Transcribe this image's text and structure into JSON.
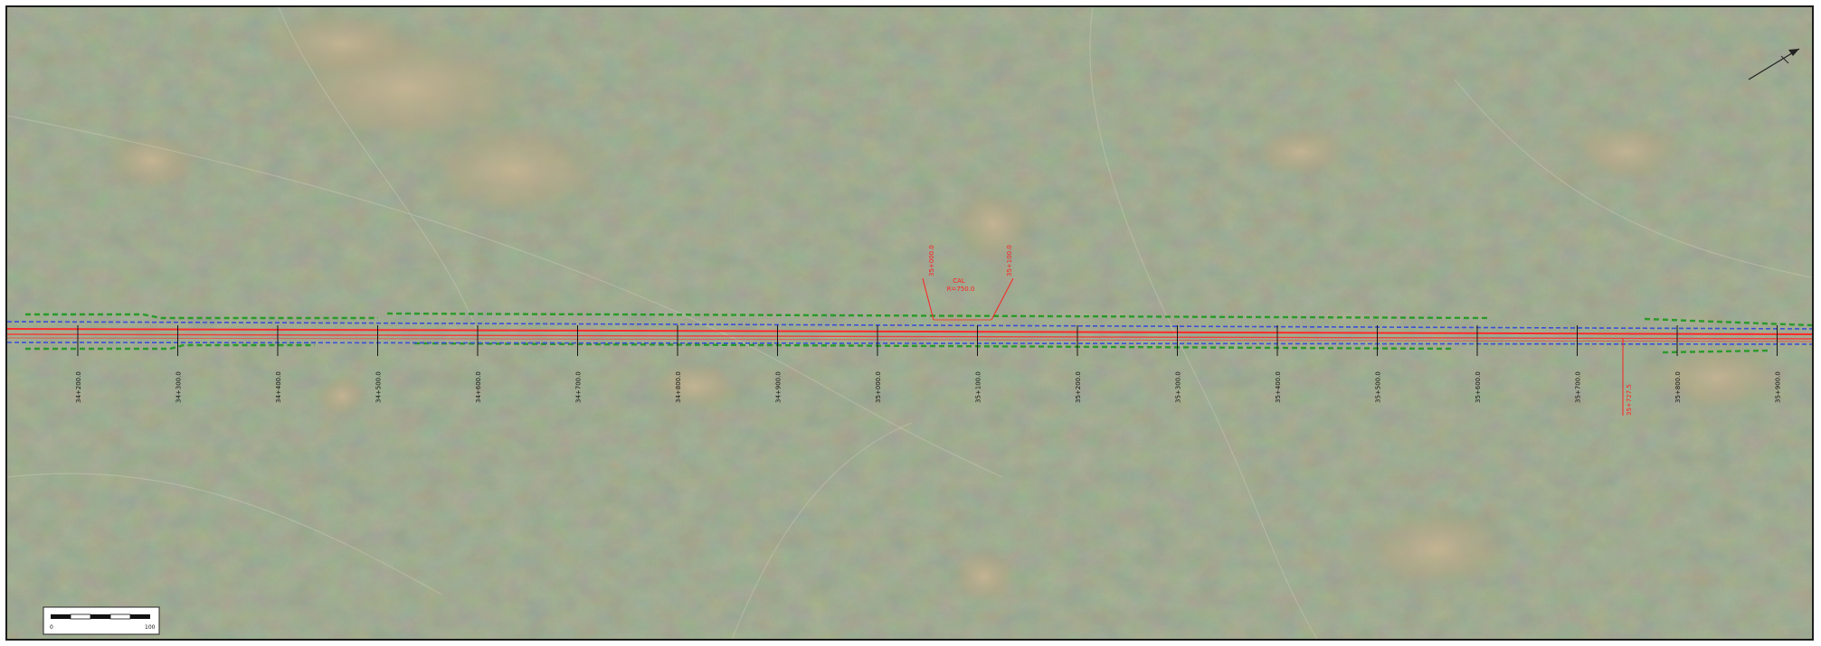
{
  "colors": {
    "terrain": "#7f8c6e",
    "terrain_light": "#a69a7c",
    "alignment_red": "#ff2a2a",
    "offset_blue": "#3a4fd6",
    "limit_green": "#2a9a2a",
    "callout_red": "#ff2020"
  },
  "stations": [
    {
      "label": "34+200.0"
    },
    {
      "label": "34+300.0"
    },
    {
      "label": "34+400.0"
    },
    {
      "label": "34+500.0"
    },
    {
      "label": "34+600.0"
    },
    {
      "label": "34+700.0"
    },
    {
      "label": "34+800.0"
    },
    {
      "label": "34+900.0"
    },
    {
      "label": "35+000.0"
    },
    {
      "label": "35+100.0"
    },
    {
      "label": "35+200.0"
    },
    {
      "label": "35+300.0"
    },
    {
      "label": "35+400.0"
    },
    {
      "label": "35+500.0"
    },
    {
      "label": "35+600.0"
    },
    {
      "label": "35+700.0"
    },
    {
      "label": "35+800.0"
    },
    {
      "label": "35+900.0"
    }
  ],
  "callouts": {
    "left_label": "35+000.0",
    "right_label": "35+100.0",
    "center_line1": "CAL",
    "center_line2": "R=750.0",
    "right_red_label": "35+727.5"
  },
  "north_arrow": {
    "icon": "north-arrow-icon"
  },
  "scale_bar": {
    "start_label": "0",
    "end_label": "100"
  }
}
